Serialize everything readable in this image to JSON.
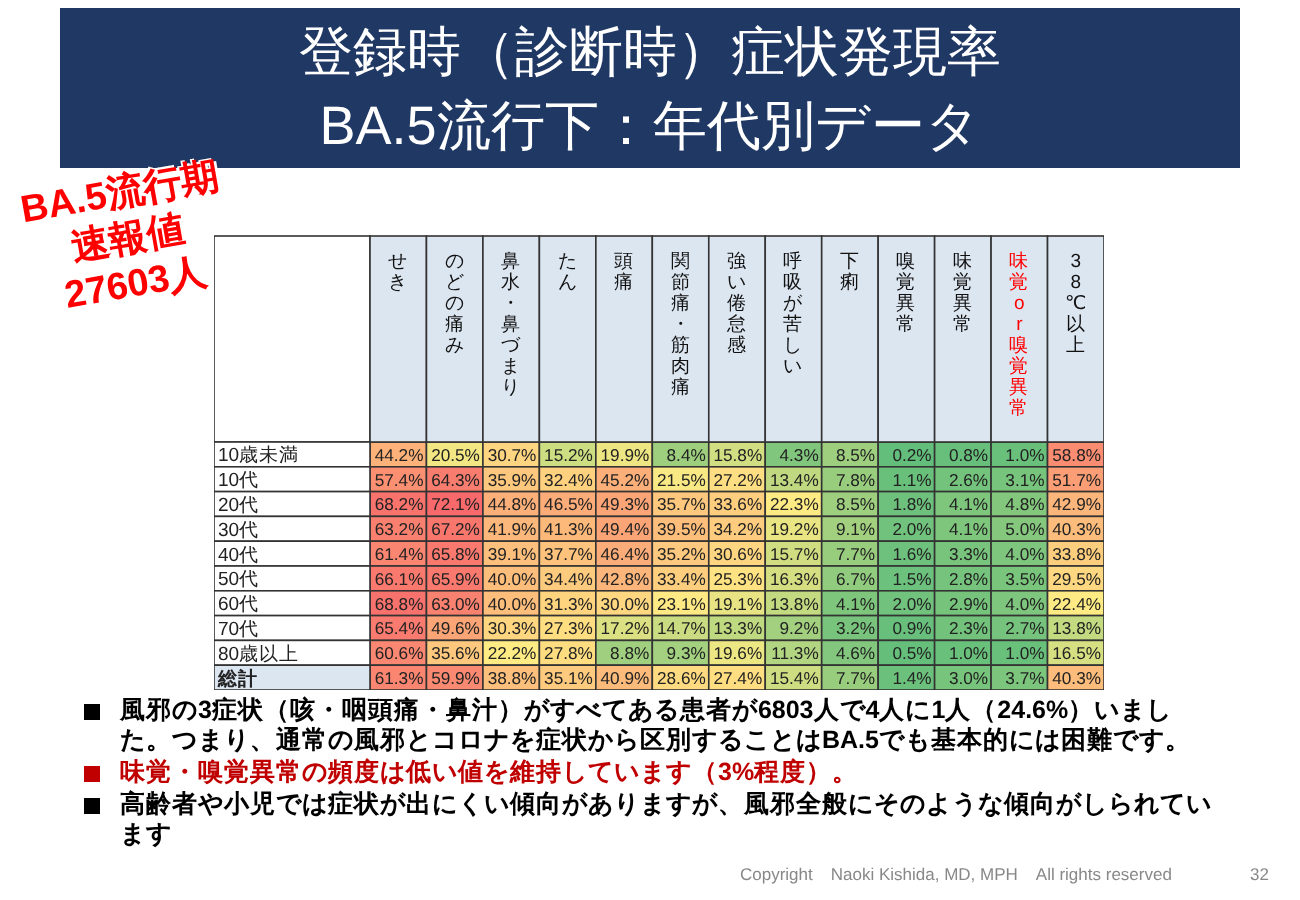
{
  "chart_data": {
    "type": "heatmap",
    "title": "登録時（診断時）症状発現率",
    "subtitle": "BA.5流行下：年代別データ",
    "categories": [
      "せき",
      "のどの痛み",
      "鼻水・鼻づまり",
      "たん",
      "頭痛",
      "関節痛・筋肉痛",
      "強い倦怠感",
      "呼吸が苦しい",
      "下痢",
      "嗅覚異常",
      "味覚異常",
      "味覚or嗅覚異常",
      "38℃以上"
    ],
    "y_categories": [
      "10歳未満",
      "10代",
      "20代",
      "30代",
      "40代",
      "50代",
      "60代",
      "70代",
      "80歳以上",
      "総計"
    ],
    "cells": [
      [
        44.2,
        20.5,
        30.7,
        15.2,
        19.9,
        8.4,
        15.8,
        4.3,
        8.5,
        0.2,
        0.8,
        1.0,
        58.8
      ],
      [
        57.4,
        64.3,
        35.9,
        32.4,
        45.2,
        21.5,
        27.2,
        13.4,
        7.8,
        1.1,
        2.6,
        3.1,
        51.7
      ],
      [
        68.2,
        72.1,
        44.8,
        46.5,
        49.3,
        35.7,
        33.6,
        22.3,
        8.5,
        1.8,
        4.1,
        4.8,
        42.9
      ],
      [
        63.2,
        67.2,
        41.9,
        41.3,
        49.4,
        39.5,
        34.2,
        19.2,
        9.1,
        2.0,
        4.1,
        5.0,
        40.3
      ],
      [
        61.4,
        65.8,
        39.1,
        37.7,
        46.4,
        35.2,
        30.6,
        15.7,
        7.7,
        1.6,
        3.3,
        4.0,
        33.8
      ],
      [
        66.1,
        65.9,
        40.0,
        34.4,
        42.8,
        33.4,
        25.3,
        16.3,
        6.7,
        1.5,
        2.8,
        3.5,
        29.5
      ],
      [
        68.8,
        63.0,
        40.0,
        31.3,
        30.0,
        23.1,
        19.1,
        13.8,
        4.1,
        2.0,
        2.9,
        4.0,
        22.4
      ],
      [
        65.4,
        49.6,
        30.3,
        27.3,
        17.2,
        14.7,
        13.3,
        9.2,
        3.2,
        0.9,
        2.3,
        2.7,
        13.8
      ],
      [
        60.6,
        35.6,
        22.2,
        27.8,
        8.8,
        9.3,
        19.6,
        11.3,
        4.6,
        0.5,
        1.0,
        1.0,
        16.5
      ],
      [
        61.3,
        59.9,
        38.8,
        35.1,
        40.9,
        28.6,
        27.4,
        15.4,
        7.7,
        1.4,
        3.0,
        3.7,
        40.3
      ]
    ],
    "cell_labels": [
      [
        "44.2%",
        "20.5%",
        "30.7%",
        "15.2%",
        "19.9%",
        "8.4%",
        "15.8%",
        "4.3%",
        "8.5%",
        "0.2%",
        "0.8%",
        "1.0%",
        "58.8%"
      ],
      [
        "57.4%",
        "64.3%",
        "35.9%",
        "32.4%",
        "45.2%",
        "21.5%",
        "27.2%",
        "13.4%",
        "7.8%",
        "1.1%",
        "2.6%",
        "3.1%",
        "51.7%"
      ],
      [
        "68.2%",
        "72.1%",
        "44.8%",
        "46.5%",
        "49.3%",
        "35.7%",
        "33.6%",
        "22.3%",
        "8.5%",
        "1.8%",
        "4.1%",
        "4.8%",
        "42.9%"
      ],
      [
        "63.2%",
        "67.2%",
        "41.9%",
        "41.3%",
        "49.4%",
        "39.5%",
        "34.2%",
        "19.2%",
        "9.1%",
        "2.0%",
        "4.1%",
        "5.0%",
        "40.3%"
      ],
      [
        "61.4%",
        "65.8%",
        "39.1%",
        "37.7%",
        "46.4%",
        "35.2%",
        "30.6%",
        "15.7%",
        "7.7%",
        "1.6%",
        "3.3%",
        "4.0%",
        "33.8%"
      ],
      [
        "66.1%",
        "65.9%",
        "40.0%",
        "34.4%",
        "42.8%",
        "33.4%",
        "25.3%",
        "16.3%",
        "6.7%",
        "1.5%",
        "2.8%",
        "3.5%",
        "29.5%"
      ],
      [
        "68.8%",
        "63.0%",
        "40.0%",
        "31.3%",
        "30.0%",
        "23.1%",
        "19.1%",
        "13.8%",
        "4.1%",
        "2.0%",
        "2.9%",
        "4.0%",
        "22.4%"
      ],
      [
        "65.4%",
        "49.6%",
        "30.3%",
        "27.3%",
        "17.2%",
        "14.7%",
        "13.3%",
        "9.2%",
        "3.2%",
        "0.9%",
        "2.3%",
        "2.7%",
        "13.8%"
      ],
      [
        "60.6%",
        "35.6%",
        "22.2%",
        "27.8%",
        "8.8%",
        "9.3%",
        "19.6%",
        "11.3%",
        "4.6%",
        "0.5%",
        "1.0%",
        "1.0%",
        "16.5%"
      ],
      [
        "61.3%",
        "59.9%",
        "38.8%",
        "35.1%",
        "40.9%",
        "28.6%",
        "27.4%",
        "15.4%",
        "7.7%",
        "1.4%",
        "3.0%",
        "3.7%",
        "40.3%"
      ]
    ],
    "annotations": [
      "風邪の3症状（咳・咽頭痛・鼻汁）がすべてある患者が6803人で4人に1人（24.6%）いました。つまり、通常の風邪とコロナを症状から区別することはBA.5でも基本的には困難です。",
      "味覚・嗅覚異常の頻度は低い値を維持しています（3%程度）。",
      "高齢者や小児では症状が出にくい傾向がありますが、風邪全般にそのような傾向がしられています",
      "BA.5流行期",
      "速報値",
      "27603人",
      "Copyright　Naoki Kishida, MD, MPH　All rights reserved",
      "32"
    ]
  }
}
